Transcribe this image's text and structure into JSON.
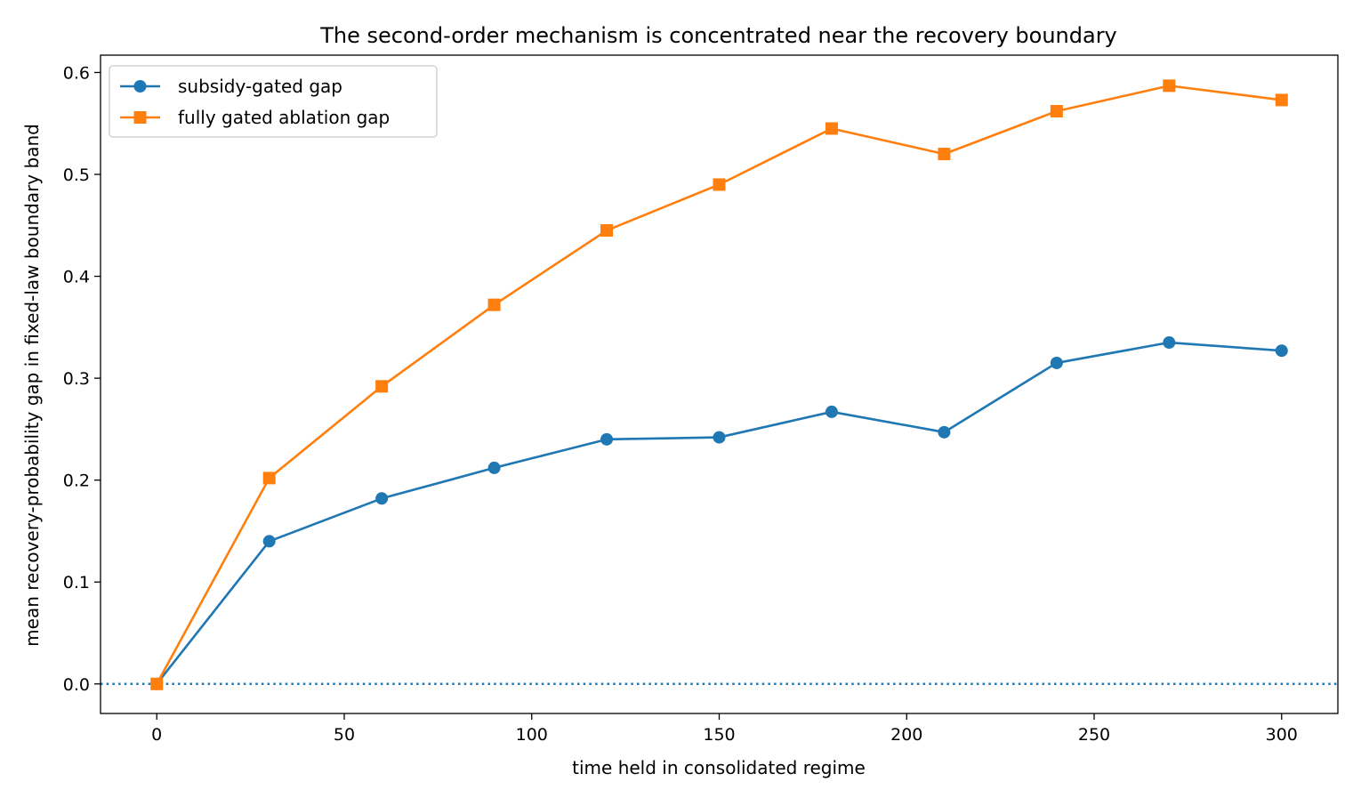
{
  "chart_data": {
    "type": "line",
    "title": "The second-order mechanism is concentrated near the recovery boundary",
    "xlabel": "time held in consolidated regime",
    "ylabel": "mean recovery-probability gap in fixed-law boundary band",
    "x": [
      0,
      30,
      60,
      90,
      120,
      150,
      180,
      210,
      240,
      270,
      300
    ],
    "xlim": [
      -15,
      315
    ],
    "ylim": [
      -0.029,
      0.617
    ],
    "xticks": [
      0,
      50,
      100,
      150,
      200,
      250,
      300
    ],
    "yticks": [
      0.0,
      0.1,
      0.2,
      0.3,
      0.4,
      0.5,
      0.6
    ],
    "xtick_labels": [
      "0",
      "50",
      "100",
      "150",
      "200",
      "250",
      "300"
    ],
    "ytick_labels": [
      "0.0",
      "0.1",
      "0.2",
      "0.3",
      "0.4",
      "0.5",
      "0.6"
    ],
    "grid": false,
    "legend_position": "top-left",
    "reference_line": {
      "y": 0.0,
      "style": "dotted",
      "color": "#1f77b4"
    },
    "series": [
      {
        "name": "subsidy-gated gap",
        "color": "#1f77b4",
        "marker": "circle",
        "values": [
          0.0,
          0.14,
          0.182,
          0.212,
          0.24,
          0.242,
          0.267,
          0.247,
          0.315,
          0.335,
          0.327
        ]
      },
      {
        "name": "fully gated ablation gap",
        "color": "#ff7f0e",
        "marker": "square",
        "values": [
          0.0,
          0.202,
          0.292,
          0.372,
          0.445,
          0.49,
          0.545,
          0.52,
          0.562,
          0.587,
          0.573
        ]
      }
    ]
  }
}
